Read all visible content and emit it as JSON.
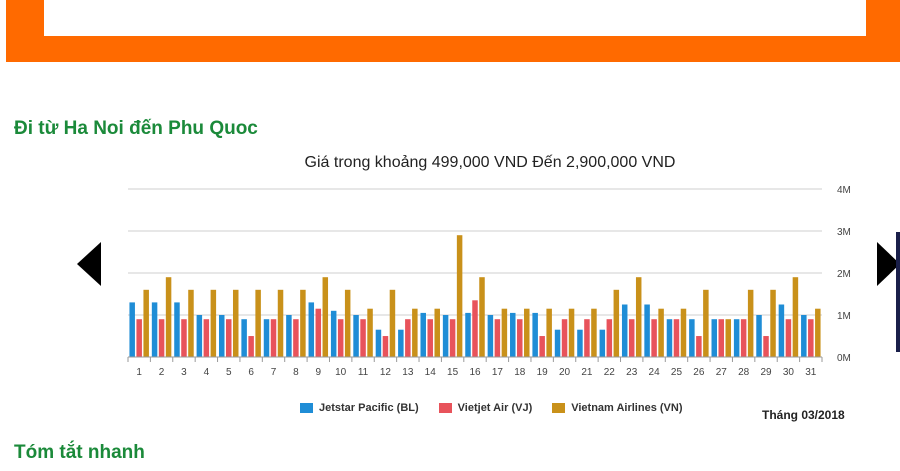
{
  "page": {
    "route_title": "Đi từ Ha Noi đến Phu Quoc",
    "summary_title": "Tóm tắt nhanh",
    "period_label": "Tháng 03/2018"
  },
  "chart_data": {
    "type": "bar",
    "title": "Giá trong khoảng 499,000 VND Đến 2,900,000 VND",
    "xlabel": "",
    "ylabel": "",
    "ylim": [
      0,
      4000000
    ],
    "y_ticks": [
      0,
      1000000,
      2000000,
      3000000,
      4000000
    ],
    "y_tick_labels": [
      "0M",
      "1M",
      "2M",
      "3M",
      "4M"
    ],
    "y_axis_side": "right",
    "grid": true,
    "legend_position": "bottom",
    "categories": [
      "1",
      "2",
      "3",
      "4",
      "5",
      "6",
      "7",
      "8",
      "9",
      "10",
      "11",
      "12",
      "13",
      "14",
      "15",
      "16",
      "17",
      "18",
      "19",
      "20",
      "21",
      "22",
      "23",
      "24",
      "25",
      "26",
      "27",
      "28",
      "29",
      "30",
      "31"
    ],
    "series": [
      {
        "name": "Jetstar Pacific (BL)",
        "color": "#1f8dd6",
        "values": [
          1300000,
          1300000,
          1300000,
          1000000,
          1000000,
          900000,
          900000,
          1000000,
          1300000,
          1100000,
          1000000,
          650000,
          650000,
          1050000,
          1000000,
          1050000,
          1000000,
          1050000,
          1050000,
          650000,
          650000,
          650000,
          1250000,
          1250000,
          900000,
          900000,
          900000,
          900000,
          1000000,
          1250000,
          1000000
        ]
      },
      {
        "name": "Vietjet Air (VJ)",
        "color": "#e8535b",
        "values": [
          900000,
          900000,
          900000,
          900000,
          900000,
          499000,
          900000,
          900000,
          1150000,
          900000,
          900000,
          499000,
          900000,
          900000,
          900000,
          1350000,
          900000,
          900000,
          499000,
          900000,
          900000,
          900000,
          900000,
          900000,
          900000,
          499000,
          900000,
          900000,
          499000,
          900000,
          900000
        ]
      },
      {
        "name": "Vietnam Airlines (VN)",
        "color": "#c9911a",
        "values": [
          1600000,
          1900000,
          1600000,
          1600000,
          1600000,
          1600000,
          1600000,
          1600000,
          1900000,
          1600000,
          1150000,
          1600000,
          1150000,
          1150000,
          2900000,
          1900000,
          1150000,
          1150000,
          1150000,
          1150000,
          1150000,
          1600000,
          1900000,
          1150000,
          1150000,
          1600000,
          900000,
          1600000,
          1600000,
          1900000,
          1150000
        ]
      }
    ]
  }
}
